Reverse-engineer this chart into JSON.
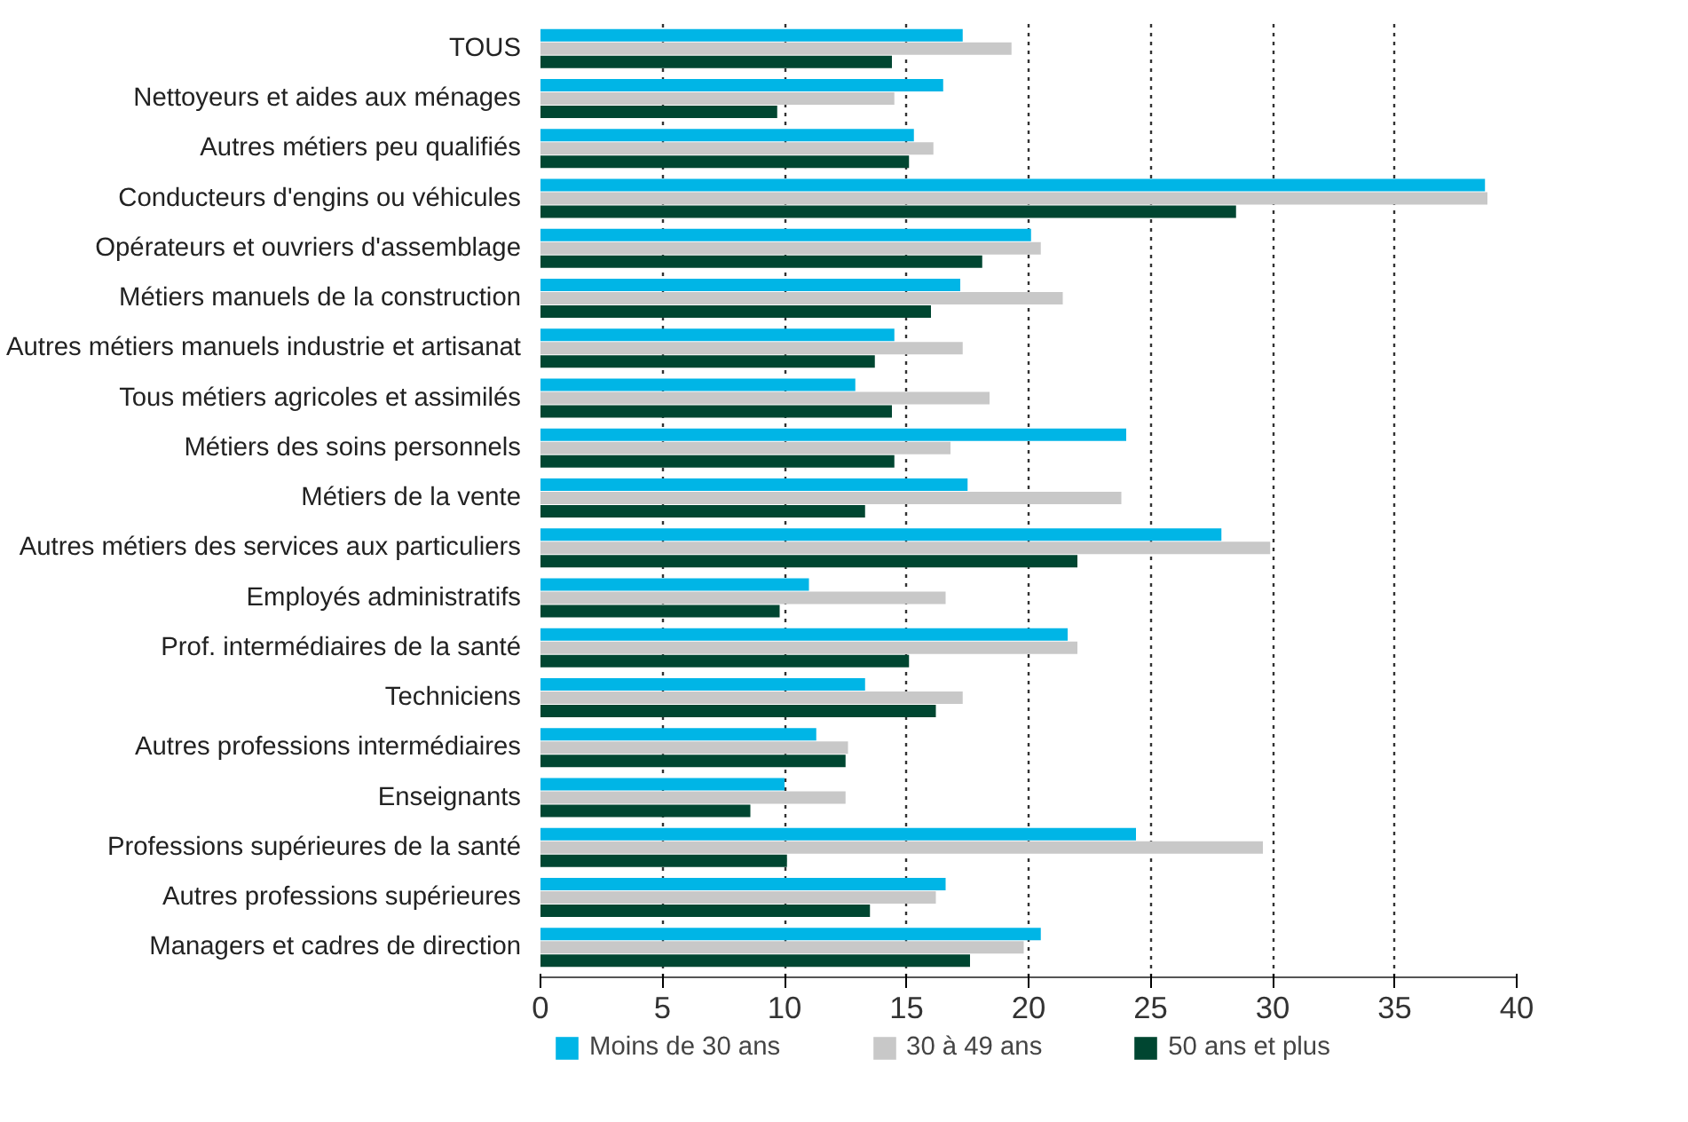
{
  "chart_data": {
    "type": "bar",
    "orientation": "horizontal",
    "categories": [
      "TOUS",
      "Nettoyeurs et aides aux ménages",
      "Autres métiers peu qualifiés",
      "Conducteurs d'engins ou véhicules",
      "Opérateurs et ouvriers d'assemblage",
      "Métiers manuels de la construction",
      "Autres métiers manuels industrie et artisanat",
      "Tous métiers agricoles et assimilés",
      "Métiers des soins personnels",
      "Métiers de la vente",
      "Autres métiers des services aux particuliers",
      "Employés administratifs",
      "Prof. intermédiaires de la santé",
      "Techniciens",
      "Autres professions intermédiaires",
      "Enseignants",
      "Professions supérieures de la santé",
      "Autres professions supérieures",
      "Managers et cadres de direction"
    ],
    "series": [
      {
        "name": "Moins de 30 ans",
        "color": "#00b5e6",
        "values": [
          17.3,
          16.5,
          15.3,
          38.7,
          20.1,
          17.2,
          14.5,
          12.9,
          24.0,
          17.5,
          27.9,
          11.0,
          21.6,
          13.3,
          11.3,
          10.0,
          24.4,
          16.6,
          20.5
        ]
      },
      {
        "name": "30 à 49 ans",
        "color": "#c8c8c8",
        "values": [
          19.3,
          14.5,
          16.1,
          38.8,
          20.5,
          21.4,
          17.3,
          18.4,
          16.8,
          23.8,
          29.9,
          16.6,
          22.0,
          17.3,
          12.6,
          12.5,
          29.6,
          16.2,
          19.8
        ]
      },
      {
        "name": "50 ans et plus",
        "color": "#004631",
        "values": [
          14.4,
          9.7,
          15.1,
          28.5,
          18.1,
          16.0,
          13.7,
          14.4,
          14.5,
          13.3,
          22.0,
          9.8,
          15.1,
          16.2,
          12.5,
          8.6,
          10.1,
          13.5,
          17.6
        ]
      }
    ],
    "xlim": [
      0,
      40
    ],
    "xticks": [
      0,
      5,
      10,
      15,
      20,
      25,
      30,
      35,
      40
    ],
    "grid": "x",
    "legend": "bottom"
  }
}
